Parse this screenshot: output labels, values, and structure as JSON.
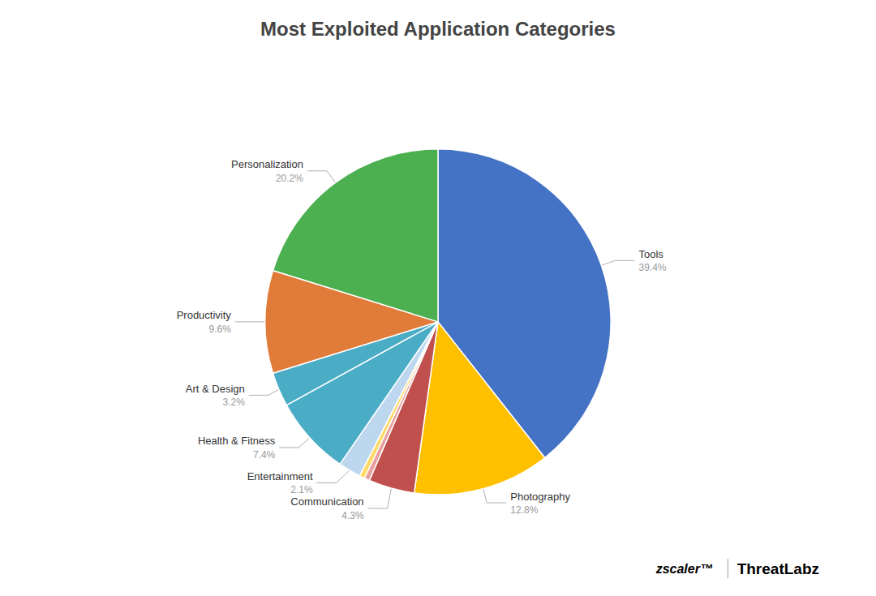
{
  "chart_data": {
    "type": "pie",
    "title": "Most Exploited Application Categories",
    "categories": [
      "Tools",
      "Photography",
      "Communication",
      null,
      null,
      "Entertainment",
      "Health & Fitness",
      "Art & Design",
      "Productivity",
      "Personalization"
    ],
    "values": [
      39.4,
      12.8,
      4.3,
      0.5,
      0.5,
      2.1,
      7.4,
      3.2,
      9.6,
      20.2
    ],
    "value_labels": [
      "39.4%",
      "12.8%",
      "4.3%",
      null,
      null,
      "2.1%",
      "7.4%",
      "3.2%",
      "9.6%",
      "20.2%"
    ],
    "colors": [
      "#4472C4",
      "#FFC000",
      "#C0504D",
      "#E8A0A0",
      "#FFD966",
      "#BDD7EE",
      "#4BACC6",
      "#4BACC6",
      "#E07B39",
      "#4CAF50"
    ],
    "data_labels": true,
    "annotations": [
      "zscaler™",
      "ThreatLabz"
    ]
  }
}
